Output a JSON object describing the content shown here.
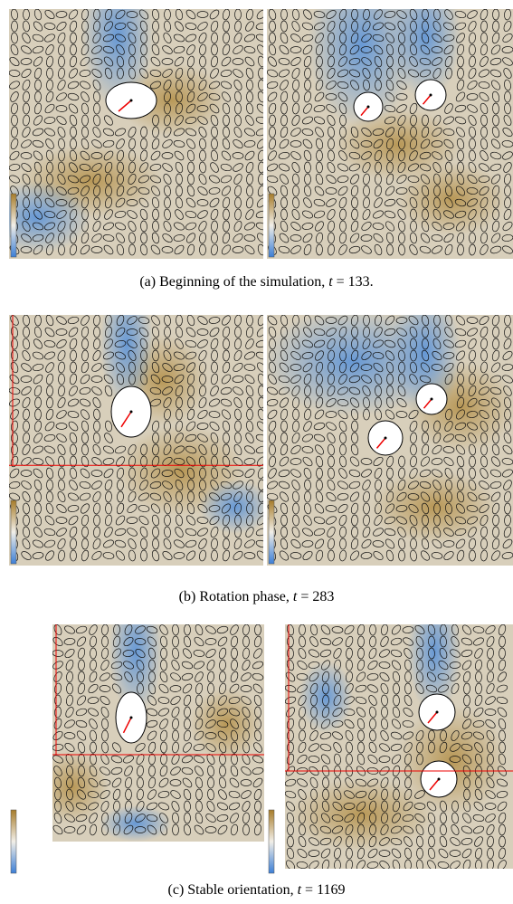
{
  "figure": {
    "subfigures": [
      {
        "label": "(a)",
        "text": "Beginning of the simulation,",
        "var": "t",
        "eq": "= 133."
      },
      {
        "label": "(b)",
        "text": "Rotation phase,",
        "var": "t",
        "eq": "= 283"
      },
      {
        "label": "(c)",
        "text": "Stable orientation,",
        "var": "t",
        "eq": "= 1169"
      }
    ]
  }
}
